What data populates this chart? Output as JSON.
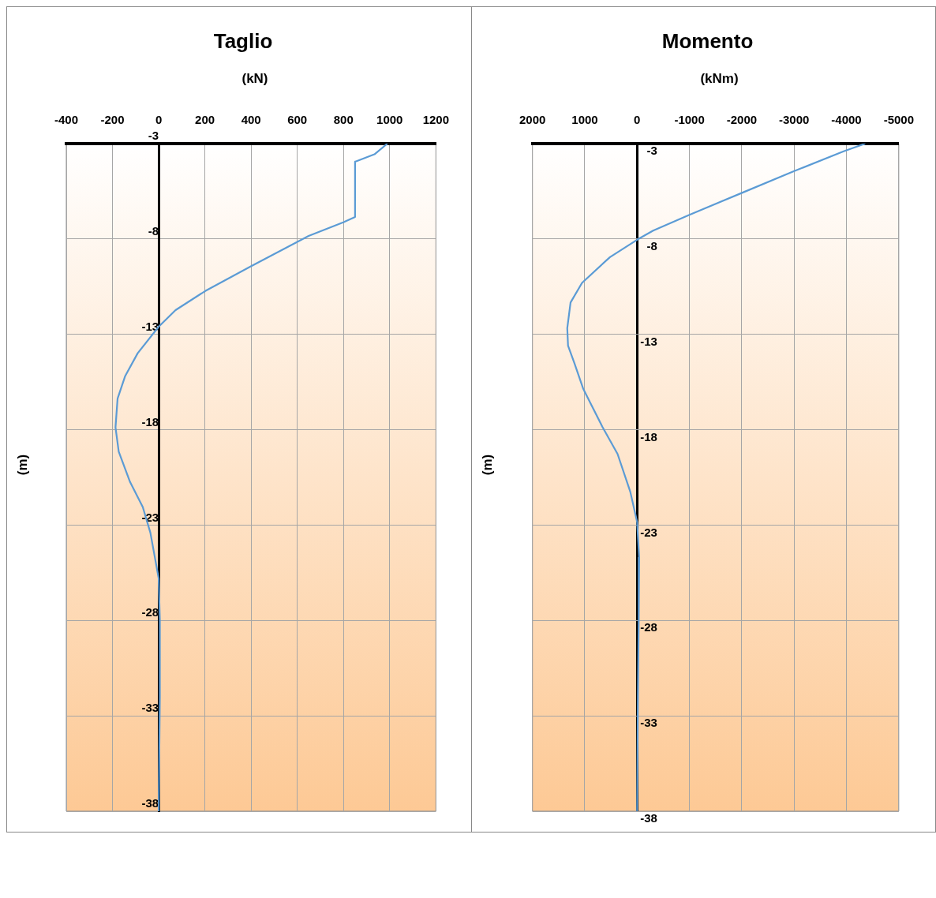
{
  "chart_data": [
    {
      "type": "line",
      "title": "Taglio",
      "xlabel": "(kN)",
      "ylabel": "(m)",
      "xlim": [
        -400,
        1200
      ],
      "xticks": [
        -400,
        -200,
        0,
        200,
        400,
        600,
        800,
        1000,
        1200
      ],
      "ylim": [
        -38,
        -3
      ],
      "yticks": [
        -3,
        -8,
        -13,
        -18,
        -23,
        -28,
        -33,
        -38
      ],
      "grid": true,
      "legend": false,
      "marker": "none",
      "line_style": "solid",
      "series": [
        {
          "color": "#5b9bd5",
          "x": [
            990,
            934,
            850,
            850,
            799,
            649,
            399,
            200,
            73,
            0,
            -91,
            -145,
            -178,
            -187,
            -173,
            -124,
            -69,
            -36,
            0,
            5,
            5,
            0
          ],
          "values": [
            -3,
            -3.56,
            -3.95,
            -6.85,
            -7.13,
            -7.84,
            -9.43,
            -10.74,
            -11.73,
            -12.6,
            -13.99,
            -15.18,
            -16.37,
            -17.88,
            -19.15,
            -20.74,
            -22.05,
            -23.4,
            -25.8,
            -28,
            -32,
            -38
          ]
        }
      ]
    },
    {
      "type": "line",
      "title": "Momento",
      "xlabel": "(kNm)",
      "ylabel": "(m)",
      "xlim": [
        2000,
        -5000
      ],
      "xticks": [
        2000,
        1000,
        0,
        -1000,
        -2000,
        -3000,
        -4000,
        -5000
      ],
      "ylim": [
        -38,
        -3
      ],
      "yticks": [
        -3,
        -8,
        -13,
        -18,
        -23,
        -28,
        -33,
        -38
      ],
      "grid": true,
      "legend": false,
      "marker": "none",
      "line_style": "solid",
      "series": [
        {
          "color": "#5b9bd5",
          "x": [
            -4359,
            -3947,
            -2976,
            -2005,
            -1000,
            -306,
            0,
            519,
            1053,
            1272,
            1335,
            1320,
            1199,
            1029,
            665,
            374,
            131,
            0,
            -39,
            -30,
            -15,
            0
          ],
          "values": [
            -3,
            -3.4,
            -4.47,
            -5.58,
            -6.73,
            -7.56,
            -8.04,
            -8.95,
            -10.3,
            -11.33,
            -12.68,
            -13.6,
            -14.51,
            -15.86,
            -17.84,
            -19.27,
            -21.25,
            -22.84,
            -24.7,
            -28,
            -32,
            -38
          ]
        }
      ]
    }
  ]
}
